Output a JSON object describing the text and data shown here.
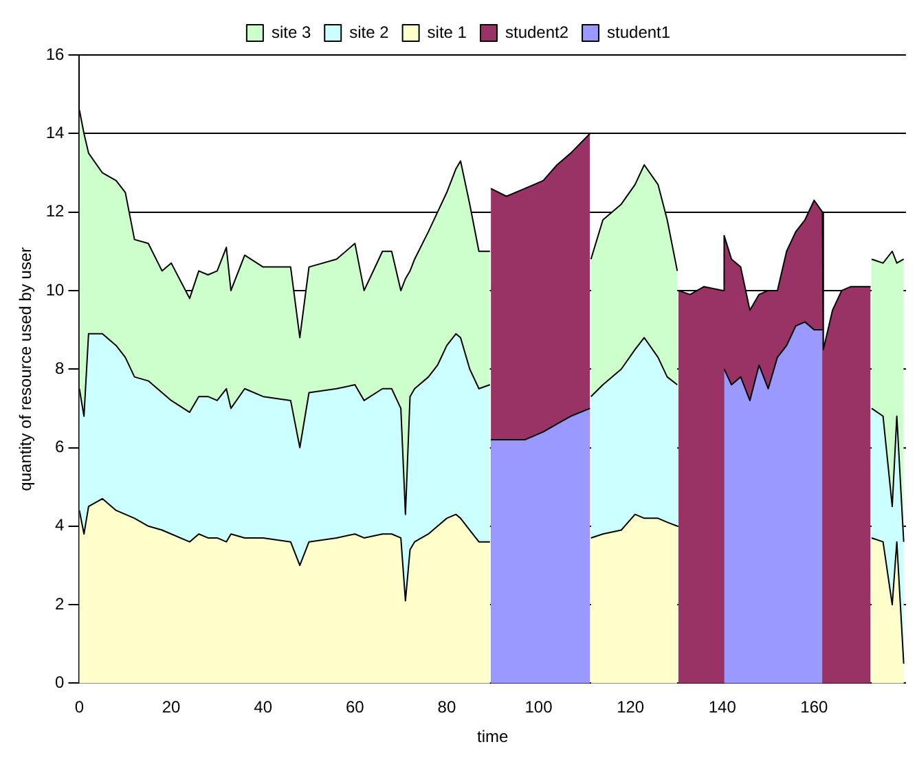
{
  "chart_data": {
    "type": "area",
    "xlabel": "time",
    "ylabel": "quantity of resource used by user",
    "stacked": true,
    "grid": "y",
    "legend": "top",
    "xlim": [
      0,
      180
    ],
    "xticks": [
      0,
      20,
      40,
      60,
      80,
      100,
      120,
      140,
      160
    ],
    "ylim": [
      0,
      16
    ],
    "yticks": [
      0,
      2,
      4,
      6,
      8,
      10,
      12,
      14,
      16
    ],
    "x": [
      0,
      1,
      2,
      5,
      8,
      10,
      12,
      15,
      18,
      20,
      24,
      26,
      28,
      30,
      32,
      33,
      36,
      40,
      46,
      48,
      50,
      56,
      60,
      62,
      66,
      68,
      70,
      71,
      72,
      73,
      76,
      78,
      80,
      82,
      83,
      85,
      87,
      89.4,
      89.6,
      93,
      97,
      101,
      104,
      107,
      111.2,
      111.4,
      114,
      118,
      121,
      123,
      126,
      128,
      130.2,
      130.4,
      133,
      136,
      140.2,
      140.4,
      142,
      144,
      146,
      148,
      150,
      152,
      154,
      156,
      158,
      160,
      161.8,
      162,
      164,
      166,
      168,
      172.3,
      172.5,
      175,
      177,
      178,
      179.5
    ],
    "series": [
      {
        "name": "student1",
        "color": "#9999ff",
        "values": [
          null,
          null,
          null,
          null,
          null,
          null,
          null,
          null,
          null,
          null,
          null,
          null,
          null,
          null,
          null,
          null,
          null,
          null,
          null,
          null,
          null,
          null,
          null,
          null,
          null,
          null,
          null,
          null,
          null,
          null,
          null,
          null,
          null,
          null,
          null,
          null,
          null,
          null,
          6.2,
          6.2,
          6.2,
          6.4,
          6.6,
          6.8,
          7.0,
          null,
          null,
          null,
          null,
          null,
          null,
          null,
          null,
          null,
          null,
          null,
          null,
          8.0,
          7.6,
          7.8,
          7.2,
          8.1,
          7.5,
          8.3,
          8.6,
          9.1,
          9.2,
          9.0,
          9.0,
          null,
          null,
          null,
          null,
          null,
          null,
          null,
          null,
          null,
          null
        ]
      },
      {
        "name": "student2",
        "color": "#993366",
        "values": [
          null,
          null,
          null,
          null,
          null,
          null,
          null,
          null,
          null,
          null,
          null,
          null,
          null,
          null,
          null,
          null,
          null,
          null,
          null,
          null,
          null,
          null,
          null,
          null,
          null,
          null,
          null,
          null,
          null,
          null,
          null,
          null,
          null,
          null,
          null,
          null,
          null,
          null,
          6.4,
          6.2,
          6.4,
          6.4,
          6.6,
          6.7,
          7.0,
          null,
          null,
          null,
          null,
          null,
          null,
          null,
          null,
          10.0,
          9.9,
          10.1,
          10.0,
          3.4,
          3.2,
          2.8,
          2.3,
          1.8,
          2.5,
          1.7,
          2.4,
          2.4,
          2.6,
          3.3,
          3.0,
          8.5,
          9.5,
          10.0,
          10.1,
          10.1,
          null,
          null,
          null,
          null,
          null
        ]
      },
      {
        "name": "site 1",
        "color": "#ffffcc",
        "values": [
          4.4,
          3.8,
          4.5,
          4.7,
          4.4,
          4.3,
          4.2,
          4.0,
          3.9,
          3.8,
          3.6,
          3.8,
          3.7,
          3.7,
          3.6,
          3.8,
          3.7,
          3.7,
          3.6,
          3.0,
          3.6,
          3.7,
          3.8,
          3.7,
          3.8,
          3.8,
          3.7,
          2.1,
          3.4,
          3.6,
          3.8,
          4.0,
          4.2,
          4.3,
          4.2,
          3.9,
          3.6,
          3.6,
          null,
          null,
          null,
          null,
          null,
          null,
          null,
          3.7,
          3.8,
          3.9,
          4.3,
          4.2,
          4.2,
          4.1,
          4.0,
          null,
          null,
          null,
          null,
          null,
          null,
          null,
          null,
          null,
          null,
          null,
          null,
          null,
          null,
          null,
          null,
          null,
          null,
          null,
          null,
          null,
          3.7,
          3.6,
          2.0,
          3.6,
          0.5
        ]
      },
      {
        "name": "site 2",
        "color": "#ccffff",
        "values": [
          3.1,
          3.0,
          4.4,
          4.2,
          4.2,
          4.0,
          3.6,
          3.7,
          3.5,
          3.4,
          3.3,
          3.5,
          3.6,
          3.5,
          3.9,
          3.2,
          3.8,
          3.6,
          3.6,
          3.0,
          3.8,
          3.8,
          3.8,
          3.5,
          3.7,
          3.7,
          3.3,
          2.2,
          3.9,
          3.9,
          4.0,
          4.1,
          4.4,
          4.6,
          4.6,
          4.1,
          3.9,
          4.0,
          null,
          null,
          null,
          null,
          null,
          null,
          null,
          3.6,
          3.8,
          4.1,
          4.2,
          4.6,
          4.1,
          3.7,
          3.6,
          null,
          null,
          null,
          null,
          null,
          null,
          null,
          null,
          null,
          null,
          null,
          null,
          null,
          null,
          null,
          null,
          null,
          null,
          null,
          null,
          null,
          3.3,
          3.2,
          2.5,
          3.2,
          3.1
        ]
      },
      {
        "name": "site 3",
        "color": "#ccffcc",
        "values": [
          7.1,
          7.2,
          4.6,
          4.1,
          4.2,
          4.2,
          3.5,
          3.5,
          3.1,
          3.5,
          2.9,
          3.2,
          3.1,
          3.3,
          3.6,
          3.0,
          3.4,
          3.3,
          3.4,
          2.8,
          3.2,
          3.3,
          3.6,
          2.8,
          3.5,
          3.5,
          3.0,
          6.0,
          3.2,
          3.3,
          3.7,
          3.9,
          3.9,
          4.2,
          4.5,
          4.2,
          3.5,
          3.4,
          null,
          null,
          null,
          null,
          null,
          null,
          null,
          3.5,
          4.2,
          4.2,
          4.2,
          4.4,
          4.4,
          4.0,
          2.9,
          null,
          null,
          null,
          null,
          null,
          null,
          null,
          null,
          null,
          null,
          null,
          null,
          null,
          null,
          null,
          null,
          null,
          null,
          null,
          null,
          null,
          3.8,
          3.9,
          6.5,
          3.9,
          7.2
        ]
      }
    ]
  }
}
